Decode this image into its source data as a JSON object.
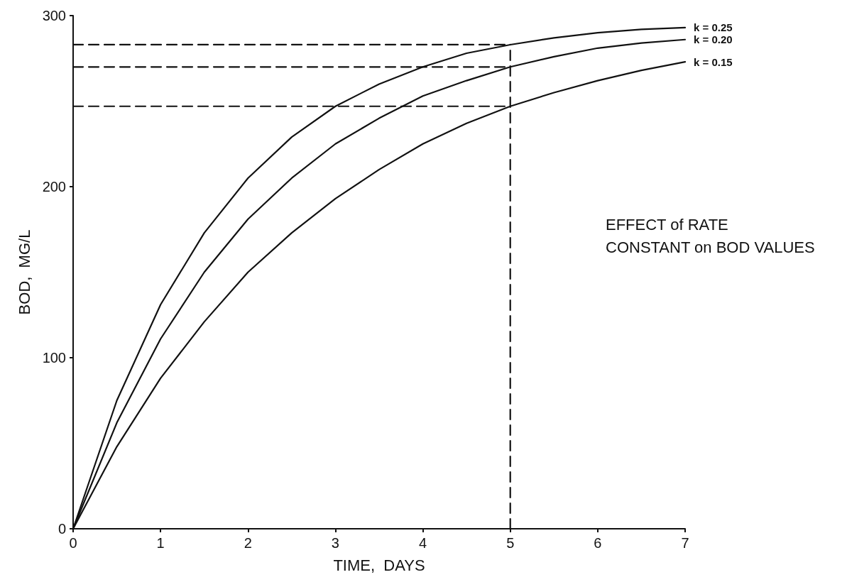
{
  "chart_data": {
    "type": "line",
    "xlabel": "TIME,  DAYS",
    "ylabel": "BOD,  MG/L",
    "annotations": [
      "EFFECT of RATE CONSTANT on BOD VALUES"
    ],
    "xlim": [
      0,
      7
    ],
    "xticks": [
      0,
      1,
      2,
      3,
      4,
      5,
      6,
      7
    ],
    "ylim": [
      0,
      300
    ],
    "yticks": [
      0,
      100,
      200,
      300
    ],
    "grid": false,
    "legend": false,
    "marker": "none",
    "series": [
      {
        "name": "k = 0.25",
        "color": "#111111",
        "line_style": "solid",
        "x": [
          0,
          0.5,
          1,
          1.5,
          2,
          2.5,
          3,
          3.5,
          4,
          4.5,
          5,
          5.5,
          6,
          6.5,
          7
        ],
        "values": [
          0,
          75,
          131,
          173,
          205,
          229,
          247,
          260,
          270,
          278,
          283,
          287,
          290,
          292,
          293
        ]
      },
      {
        "name": "k = 0.20",
        "color": "#111111",
        "line_style": "solid",
        "x": [
          0,
          0.5,
          1,
          1.5,
          2,
          2.5,
          3,
          3.5,
          4,
          4.5,
          5,
          5.5,
          6,
          6.5,
          7
        ],
        "values": [
          0,
          62,
          111,
          150,
          181,
          205,
          225,
          240,
          253,
          262,
          270,
          276,
          281,
          284,
          286
        ]
      },
      {
        "name": "k = 0.15",
        "color": "#111111",
        "line_style": "solid",
        "x": [
          0,
          0.5,
          1,
          1.5,
          2,
          2.5,
          3,
          3.5,
          4,
          4.5,
          5,
          5.5,
          6,
          6.5,
          7
        ],
        "values": [
          0,
          48,
          88,
          121,
          150,
          173,
          193,
          210,
          225,
          237,
          247,
          255,
          262,
          268,
          273
        ]
      },
      {
        "color": "#111111",
        "line_style": "dashed",
        "x": [
          0,
          5
        ],
        "values": [
          283,
          283
        ]
      },
      {
        "color": "#111111",
        "line_style": "dashed",
        "x": [
          0,
          5
        ],
        "values": [
          270,
          270
        ]
      },
      {
        "color": "#111111",
        "line_style": "dashed",
        "x": [
          0,
          5
        ],
        "values": [
          247,
          247
        ]
      },
      {
        "color": "#111111",
        "line_style": "dashed",
        "x": [
          5,
          5
        ],
        "values": [
          0,
          283
        ]
      }
    ]
  }
}
